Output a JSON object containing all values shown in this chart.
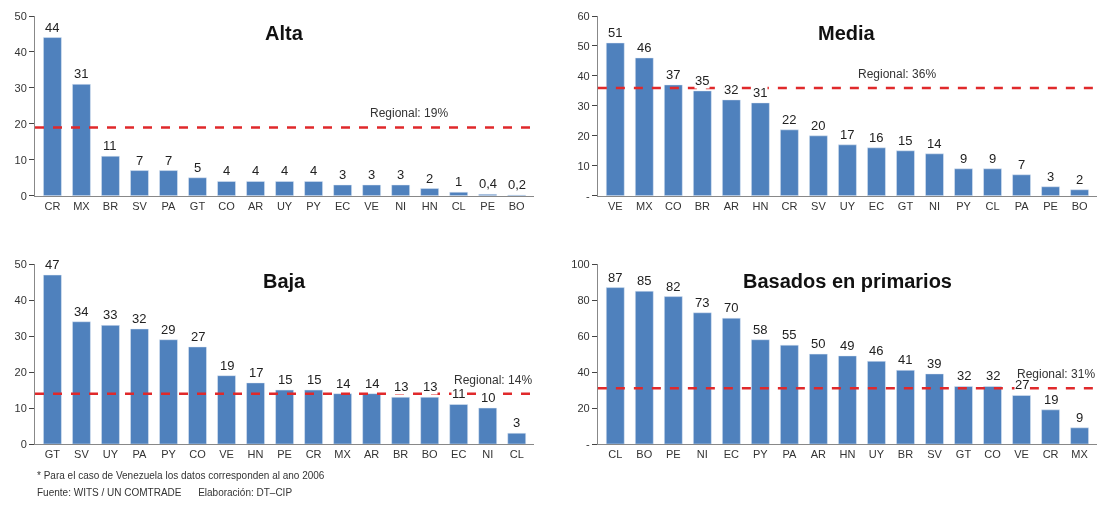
{
  "chart_data": [
    {
      "type": "bar",
      "title": "Alta",
      "categories": [
        "CR",
        "MX",
        "BR",
        "SV",
        "PA",
        "GT",
        "CO",
        "AR",
        "UY",
        "PY",
        "EC",
        "VE",
        "NI",
        "HN",
        "CL",
        "PE",
        "BO"
      ],
      "values": [
        44,
        31,
        11,
        7,
        7,
        5,
        4,
        4,
        4,
        4,
        3,
        3,
        3,
        2,
        1,
        0.4,
        0.2
      ],
      "value_labels": [
        "44",
        "31",
        "11",
        "7",
        "7",
        "5",
        "4",
        "4",
        "4",
        "4",
        "3",
        "3",
        "3",
        "2",
        "1",
        "0,4",
        "0,2"
      ],
      "color": "#4f81bd",
      "ylim": [
        0,
        50
      ],
      "yticks": [
        0,
        10,
        20,
        30,
        40,
        50
      ],
      "ref_lines": [
        {
          "axis": "y",
          "value": 19,
          "label": "Regional: 19%",
          "color": "#e0292b",
          "line_style": "dashed"
        }
      ]
    },
    {
      "type": "bar",
      "title": "Media",
      "categories": [
        "VE",
        "MX",
        "CO",
        "BR",
        "AR",
        "HN",
        "CR",
        "SV",
        "UY",
        "EC",
        "GT",
        "NI",
        "PY",
        "CL",
        "PA",
        "PE",
        "BO"
      ],
      "values": [
        51,
        46,
        37,
        35,
        32,
        31,
        22,
        20,
        17,
        16,
        15,
        14,
        9,
        9,
        7,
        3,
        2
      ],
      "value_labels": [
        "51",
        "46",
        "37",
        "35",
        "32",
        "31",
        "22",
        "20",
        "17",
        "16",
        "15",
        "14",
        "9",
        "9",
        "7",
        "3",
        "2"
      ],
      "color": "#4f81bd",
      "ylim": [
        0,
        60
      ],
      "yticks": [
        {
          "value": 0,
          "label": "-"
        },
        10,
        20,
        30,
        40,
        50,
        60
      ],
      "ref_lines": [
        {
          "axis": "y",
          "value": 36,
          "label": "Regional: 36%",
          "color": "#e0292b",
          "line_style": "dashed"
        }
      ]
    },
    {
      "type": "bar",
      "title": "Baja",
      "categories": [
        "GT",
        "SV",
        "UY",
        "PA",
        "PY",
        "CO",
        "VE",
        "HN",
        "PE",
        "CR",
        "MX",
        "AR",
        "BR",
        "BO",
        "EC",
        "NI",
        "CL"
      ],
      "values": [
        47,
        34,
        33,
        32,
        29,
        27,
        19,
        17,
        15,
        15,
        14,
        14,
        13,
        13,
        11,
        10,
        3
      ],
      "value_labels": [
        "47",
        "34",
        "33",
        "32",
        "29",
        "27",
        "19",
        "17",
        "15",
        "15",
        "14",
        "14",
        "13",
        "13",
        "11",
        "10",
        "3"
      ],
      "color": "#4f81bd",
      "ylim": [
        0,
        50
      ],
      "yticks": [
        0,
        10,
        20,
        30,
        40,
        50
      ],
      "ref_lines": [
        {
          "axis": "y",
          "value": 14,
          "label": "Regional: 14%",
          "color": "#e0292b",
          "line_style": "dashed"
        }
      ],
      "annotations": [
        "* Para el caso de Venezuela los datos corresponden al ano 2006",
        "Fuente: WITS / UN COMTRADE      Elaboración: DT–CIP"
      ]
    },
    {
      "type": "bar",
      "title": "Basados en primarios",
      "categories": [
        "CL",
        "BO",
        "PE",
        "NI",
        "EC",
        "PY",
        "PA",
        "AR",
        "HN",
        "UY",
        "BR",
        "SV",
        "GT",
        "CO",
        "VE",
        "CR",
        "MX"
      ],
      "values": [
        87,
        85,
        82,
        73,
        70,
        58,
        55,
        50,
        49,
        46,
        41,
        39,
        32,
        32,
        27,
        19,
        9
      ],
      "value_labels": [
        "87",
        "85",
        "82",
        "73",
        "70",
        "58",
        "55",
        "50",
        "49",
        "46",
        "41",
        "39",
        "32",
        "32",
        "27",
        "19",
        "9"
      ],
      "color": "#4f81bd",
      "ylim": [
        0,
        100
      ],
      "yticks": [
        {
          "value": 0,
          "label": "-"
        },
        20,
        40,
        60,
        80,
        100
      ],
      "ref_lines": [
        {
          "axis": "y",
          "value": 31,
          "label": "Regional: 31%",
          "color": "#e0292b",
          "line_style": "dashed"
        }
      ]
    }
  ]
}
